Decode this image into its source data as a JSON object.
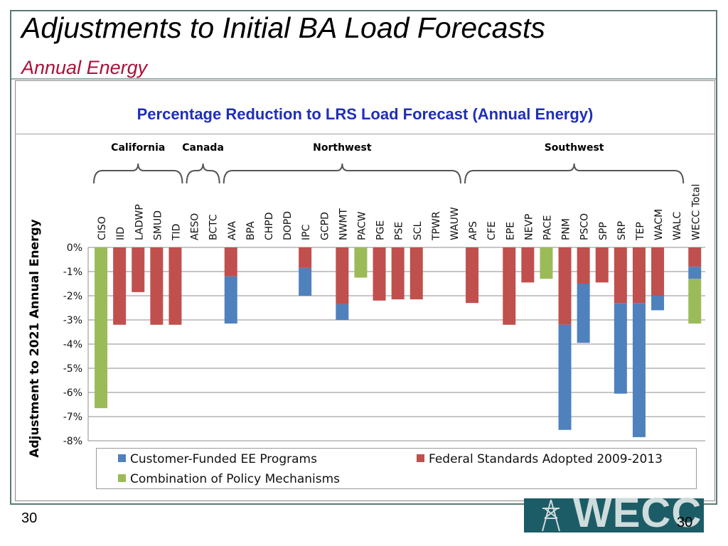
{
  "slide": {
    "title": "Adjustments to Initial BA Load Forecasts",
    "subtitle": "Annual Energy",
    "page_left": "30",
    "page_right": "30",
    "logo_text": "WECC"
  },
  "chart_data": {
    "type": "bar",
    "stacked": true,
    "title": "Percentage Reduction to LRS Load Forecast (Annual Energy)",
    "xlabel": "",
    "ylabel": "Adjustment to 2021 Annual Energy",
    "ylim": [
      -8,
      0
    ],
    "y_ticks": [
      0,
      -1,
      -2,
      -3,
      -4,
      -5,
      -6,
      -7,
      -8
    ],
    "y_tick_labels": [
      "0%",
      "-1%",
      "-2%",
      "-3%",
      "-4%",
      "-5%",
      "-6%",
      "-7%",
      "-8%"
    ],
    "grid": true,
    "legend_position": "bottom",
    "categories": [
      "CISO",
      "IID",
      "LADWP",
      "SMUD",
      "TID",
      "AESO",
      "BCTC",
      "AVA",
      "BPA",
      "CHPD",
      "DOPD",
      "IPC",
      "GCPD",
      "NWMT",
      "PACW",
      "PGE",
      "PSE",
      "SCL",
      "TPWR",
      "WAUW",
      "APS",
      "CFE",
      "EPE",
      "NEVP",
      "PACE",
      "PNM",
      "PSCO",
      "SPP",
      "SRP",
      "TEP",
      "WACM",
      "WALC",
      "WECC Total"
    ],
    "groups": [
      {
        "label": "California",
        "categories": [
          "CISO",
          "IID",
          "LADWP",
          "SMUD",
          "TID"
        ]
      },
      {
        "label": "Canada",
        "categories": [
          "AESO",
          "BCTC"
        ]
      },
      {
        "label": "Northwest",
        "categories": [
          "AVA",
          "BPA",
          "CHPD",
          "DOPD",
          "IPC",
          "GCPD",
          "NWMT",
          "PACW",
          "PGE",
          "PSE",
          "SCL",
          "TPWR",
          "WAUW"
        ]
      },
      {
        "label": "Southwest",
        "categories": [
          "APS",
          "CFE",
          "EPE",
          "NEVP",
          "PACE",
          "PNM",
          "PSCO",
          "SPP",
          "SRP",
          "TEP",
          "WACM",
          "WALC"
        ]
      }
    ],
    "series": [
      {
        "name": "Federal Standards Adopted 2009-2013",
        "color": "#c0504d",
        "values": [
          0,
          -3.2,
          -1.85,
          -3.2,
          -3.2,
          0,
          0,
          -1.2,
          0,
          0,
          0,
          -0.85,
          0,
          -2.35,
          0,
          -2.2,
          -2.15,
          -2.15,
          0,
          0,
          -2.3,
          0,
          -3.2,
          -1.45,
          0,
          -3.2,
          -1.5,
          -1.45,
          -2.3,
          -2.3,
          -2.0,
          0,
          -0.8
        ]
      },
      {
        "name": "Customer-Funded  EE Programs",
        "color": "#4f81bd",
        "values": [
          0,
          0,
          0,
          0,
          0,
          0,
          0,
          -1.95,
          0,
          0,
          0,
          -1.15,
          0,
          -0.65,
          0,
          0,
          0,
          0,
          0,
          0,
          0,
          0,
          0,
          0,
          0,
          -4.35,
          -2.45,
          0,
          -3.75,
          -5.55,
          -0.6,
          0,
          -0.5
        ]
      },
      {
        "name": "Combination of Policy Mechanisms",
        "color": "#9bbb59",
        "values": [
          -6.65,
          0,
          0,
          0,
          0,
          0,
          0,
          0,
          0,
          0,
          0,
          0,
          0,
          0,
          -1.25,
          0,
          0,
          0,
          0,
          0,
          0,
          0,
          0,
          0,
          -1.3,
          0,
          0,
          0,
          0,
          0,
          0,
          0,
          -1.85
        ]
      }
    ]
  }
}
